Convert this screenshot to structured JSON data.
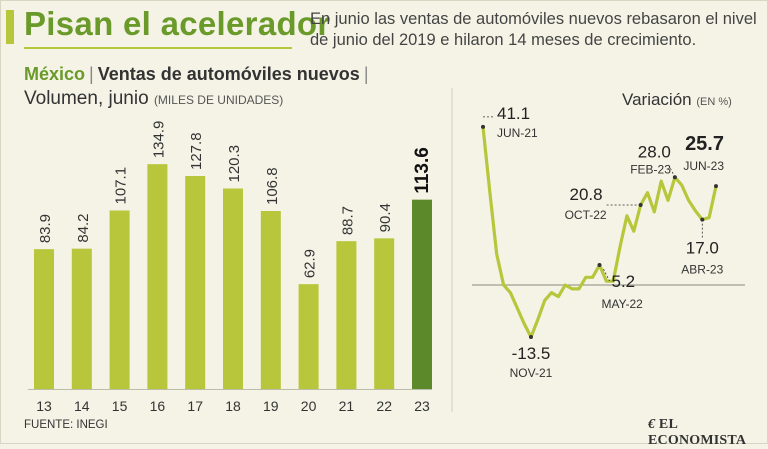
{
  "header": {
    "title": "Pisan el acelerador",
    "subtitle": "En junio las ventas de automóviles nuevos rebasaron el nivel de junio del 2019 e hilaron 14 meses de crecimiento."
  },
  "section": {
    "country": "México",
    "title": "Ventas de automóviles nuevos",
    "separator": "|"
  },
  "colors": {
    "bar": "#b7c63a",
    "bar_highlight": "#5c8a2a",
    "title_green": "#6a9a2a",
    "line": "#b7c63a",
    "baseline": "#8a8a7a"
  },
  "chart_data": [
    {
      "type": "bar",
      "title": "Volumen, junio",
      "unit_note": "(MILES DE UNIDADES)",
      "categories": [
        "13",
        "14",
        "15",
        "16",
        "17",
        "18",
        "19",
        "20",
        "21",
        "22",
        "23"
      ],
      "values": [
        83.9,
        84.2,
        107.1,
        134.9,
        127.8,
        120.3,
        106.8,
        62.9,
        88.7,
        90.4,
        113.6
      ],
      "value_labels": [
        "83.9",
        "84.2",
        "107.1",
        "134.9",
        "127.8",
        "120.3",
        "106.8",
        "62.9",
        "88.7",
        "90.4",
        "113.6"
      ],
      "highlight_index": 10,
      "ylim": [
        0,
        150
      ]
    },
    {
      "type": "line",
      "title": "Variación",
      "unit_note": "(EN %)",
      "values": [
        41.1,
        24,
        8,
        0,
        -2,
        -6,
        -10,
        -13.5,
        -9,
        -4,
        -2,
        -3,
        0,
        -1,
        -1,
        2,
        2,
        5.2,
        1,
        1,
        10,
        18,
        14,
        20.8,
        24,
        19,
        27,
        22,
        28.0,
        26,
        22,
        19.3,
        17.0,
        17.5,
        25.7
      ],
      "ylim": [
        -20,
        46
      ],
      "annotations": [
        {
          "index": 0,
          "value": "41.1",
          "date": "JUN-21"
        },
        {
          "index": 7,
          "value": "-13.5",
          "date": "NOV-21"
        },
        {
          "index": 17,
          "value": "5.2",
          "date": "MAY-22"
        },
        {
          "index": 23,
          "value": "20.8",
          "date": "OCT-22"
        },
        {
          "index": 28,
          "value": "28.0",
          "date": "FEB-23"
        },
        {
          "index": 32,
          "value": "17.0",
          "date": "ABR-23"
        },
        {
          "index": 34,
          "value": "25.7",
          "date": "JUN-23"
        }
      ]
    }
  ],
  "footer": {
    "source": "FUENTE: INEGI",
    "logo_mark": "€",
    "logo": "EL ECONOMISTA"
  }
}
